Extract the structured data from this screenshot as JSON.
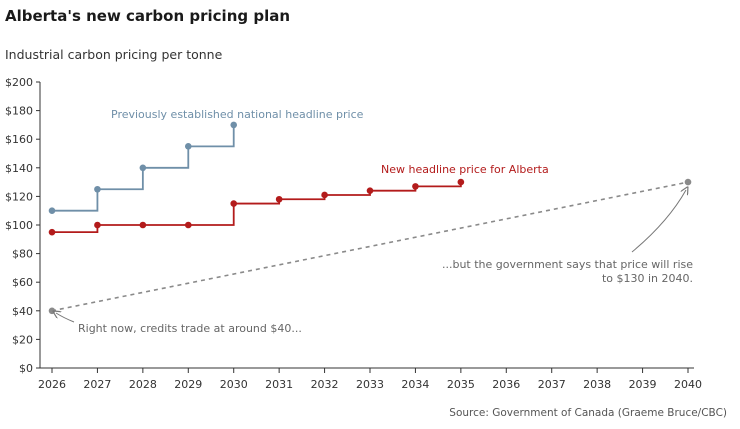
{
  "title": "Alberta's new carbon pricing plan",
  "subtitle": "Industrial carbon pricing per tonne",
  "source": "Source: Government of Canada (Graeme Bruce/CBC)",
  "colors": {
    "national": "#6f8fa8",
    "alberta": "#b31b1b",
    "dashed": "#8a8a8a",
    "annotation_gray": "#666666"
  },
  "chart_data": {
    "type": "line",
    "title": "Alberta's new carbon pricing plan",
    "subtitle": "Industrial carbon pricing per tonne",
    "xlabel": "",
    "ylabel": "",
    "xlim": [
      2026,
      2040
    ],
    "ylim": [
      0,
      200
    ],
    "x_ticks": [
      "2026",
      "2027",
      "2028",
      "2029",
      "2030",
      "2031",
      "2032",
      "2033",
      "2034",
      "2035",
      "2036",
      "2037",
      "2038",
      "2039",
      "2040"
    ],
    "y_ticks": [
      "$0",
      "$20",
      "$40",
      "$60",
      "$80",
      "$100",
      "$120",
      "$140",
      "$160",
      "$180",
      "$200"
    ],
    "grid": false,
    "series": [
      {
        "name": "Previously established national headline price",
        "step": true,
        "color": "#6f8fa8",
        "x": [
          2026,
          2027,
          2028,
          2029,
          2030
        ],
        "y": [
          110,
          125,
          140,
          155,
          170
        ]
      },
      {
        "name": "New headline price for Alberta",
        "step": true,
        "color": "#b31b1b",
        "x": [
          2026,
          2027,
          2028,
          2029,
          2030,
          2031,
          2032,
          2033,
          2034,
          2035
        ],
        "y": [
          95,
          100,
          100,
          100,
          115,
          118,
          121,
          124,
          127,
          130
        ]
      },
      {
        "name": "",
        "dashed": true,
        "color": "#8a8a8a",
        "x": [
          2026,
          2040
        ],
        "y": [
          40,
          130
        ]
      }
    ],
    "annotations": [
      {
        "text": "Right now, credits trade at around $40..."
      },
      {
        "text": "...but the government says that price will rise"
      },
      {
        "text": "to $130 in 2040."
      }
    ]
  }
}
